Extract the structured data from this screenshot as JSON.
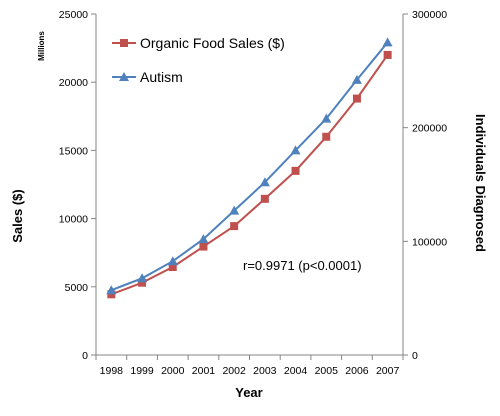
{
  "chart_data": {
    "type": "line",
    "x": [
      "1998",
      "1999",
      "2000",
      "2001",
      "2002",
      "2003",
      "2004",
      "2005",
      "2006",
      "2007"
    ],
    "xlabel": "Year",
    "ylabel_left": "Sales ($)",
    "ylabel_left_units": "Millions",
    "ylabel_right": "Individuals Diagnosed",
    "ylim_left": [
      0,
      25000
    ],
    "yticks_left": [
      0,
      5000,
      10000,
      15000,
      20000,
      25000
    ],
    "ylim_right": [
      0,
      300000
    ],
    "yticks_right": [
      0,
      100000,
      200000,
      300000
    ],
    "grid": false,
    "legend_position": "top-left",
    "series": [
      {
        "name": "Organic Food Sales ($)",
        "axis": "left",
        "marker": "square",
        "color": "#c0504d",
        "values": [
          4450,
          5300,
          6450,
          7950,
          9450,
          11450,
          13500,
          16000,
          18800,
          22000
        ]
      },
      {
        "name": "Autism",
        "axis": "right",
        "marker": "triangle",
        "color": "#4f81bd",
        "values": [
          57000,
          67500,
          82500,
          102000,
          127000,
          152000,
          180000,
          208000,
          242000,
          275000
        ]
      }
    ],
    "annotation": "r=0.9971 (p<0.0001)"
  }
}
